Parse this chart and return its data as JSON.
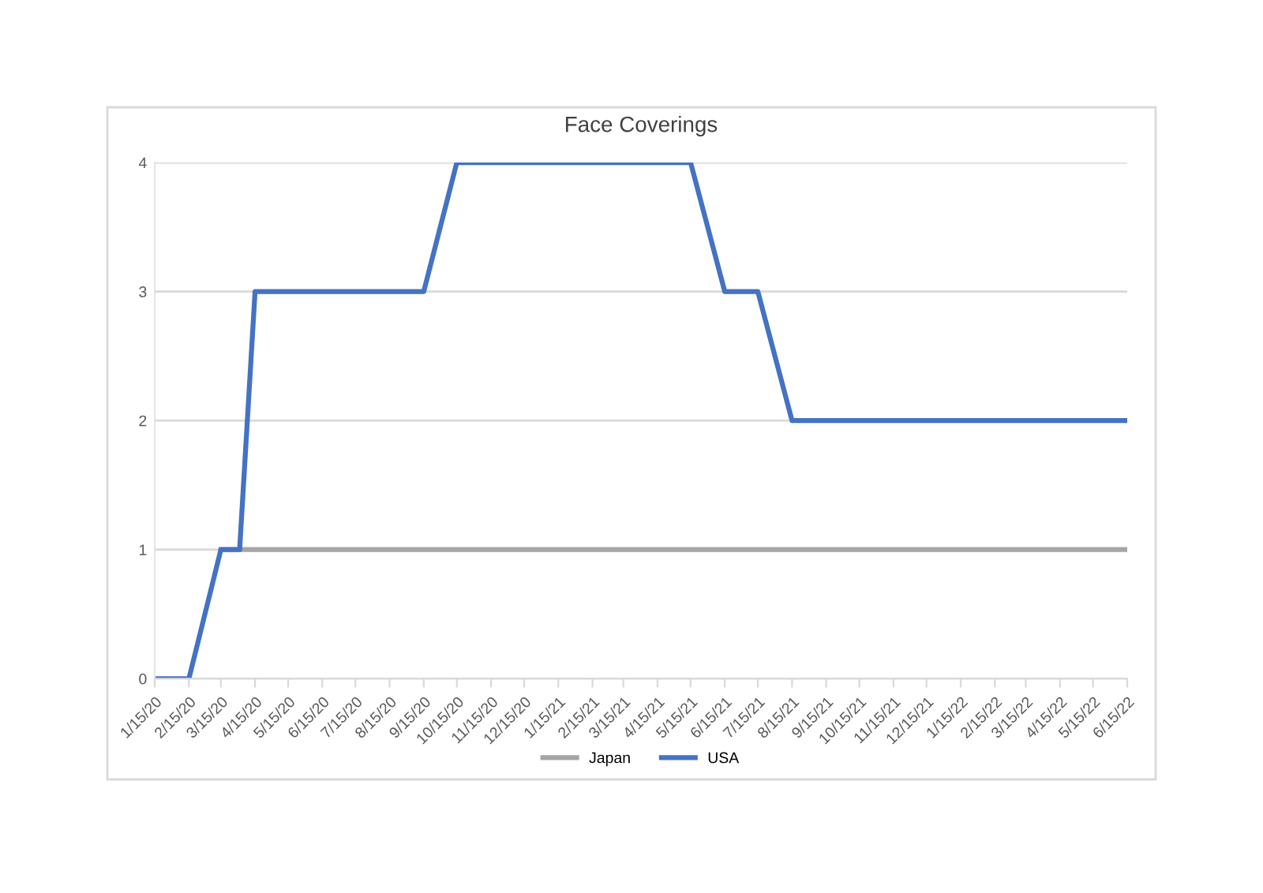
{
  "chart_data": {
    "type": "line",
    "title": "Face Coverings",
    "xlim": [
      "2020-01-15",
      "2022-06-15"
    ],
    "xticks": [
      {
        "value": "2020-01-15",
        "label": "1/15/20"
      },
      {
        "value": "2020-02-15",
        "label": "2/15/20"
      },
      {
        "value": "2020-03-15",
        "label": "3/15/20"
      },
      {
        "value": "2020-04-15",
        "label": "4/15/20"
      },
      {
        "value": "2020-05-15",
        "label": "5/15/20"
      },
      {
        "value": "2020-06-15",
        "label": "6/15/20"
      },
      {
        "value": "2020-07-15",
        "label": "7/15/20"
      },
      {
        "value": "2020-08-15",
        "label": "8/15/20"
      },
      {
        "value": "2020-09-15",
        "label": "9/15/20"
      },
      {
        "value": "2020-10-15",
        "label": "10/15/20"
      },
      {
        "value": "2020-11-15",
        "label": "11/15/20"
      },
      {
        "value": "2020-12-15",
        "label": "12/15/20"
      },
      {
        "value": "2021-01-15",
        "label": "1/15/21"
      },
      {
        "value": "2021-02-15",
        "label": "2/15/21"
      },
      {
        "value": "2021-03-15",
        "label": "3/15/21"
      },
      {
        "value": "2021-04-15",
        "label": "4/15/21"
      },
      {
        "value": "2021-05-15",
        "label": "5/15/21"
      },
      {
        "value": "2021-06-15",
        "label": "6/15/21"
      },
      {
        "value": "2021-07-15",
        "label": "7/15/21"
      },
      {
        "value": "2021-08-15",
        "label": "8/15/21"
      },
      {
        "value": "2021-09-15",
        "label": "9/15/21"
      },
      {
        "value": "2021-10-15",
        "label": "10/15/21"
      },
      {
        "value": "2021-11-15",
        "label": "11/15/21"
      },
      {
        "value": "2021-12-15",
        "label": "12/15/21"
      },
      {
        "value": "2022-01-15",
        "label": "1/15/22"
      },
      {
        "value": "2022-02-15",
        "label": "2/15/22"
      },
      {
        "value": "2022-03-15",
        "label": "3/15/22"
      },
      {
        "value": "2022-04-15",
        "label": "4/15/22"
      },
      {
        "value": "2022-05-15",
        "label": "5/15/22"
      },
      {
        "value": "2022-06-15",
        "label": "6/15/22"
      }
    ],
    "ylim": [
      0,
      4
    ],
    "yticks": [
      0,
      1,
      2,
      3,
      4
    ],
    "grid": "y",
    "legend": "bottom",
    "series": [
      {
        "name": "Japan",
        "color": "#a5a5a5",
        "x": [
          "2020-03-15",
          "2022-06-15"
        ],
        "values": [
          1,
          1
        ]
      },
      {
        "name": "USA",
        "color": "#4472c4",
        "x": [
          "2020-01-15",
          "2020-02-15",
          "2020-03-15",
          "2020-04-01",
          "2020-04-15",
          "2020-09-15",
          "2020-10-15",
          "2021-05-15",
          "2021-06-15",
          "2021-07-15",
          "2021-08-15",
          "2022-06-15"
        ],
        "values": [
          0,
          0,
          1,
          1,
          3,
          3,
          4,
          4,
          3,
          3,
          2,
          2
        ]
      }
    ]
  }
}
